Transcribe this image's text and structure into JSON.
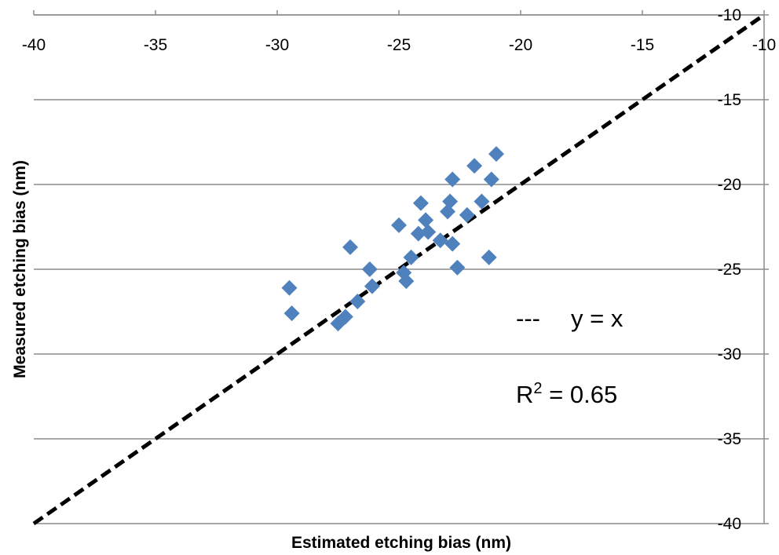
{
  "chart_data": {
    "type": "scatter",
    "xlabel": "Estimated etching bias (nm)",
    "ylabel": "Measured etching bias (nm)",
    "xlim": [
      -40,
      -10
    ],
    "ylim": [
      -40,
      -10
    ],
    "x_ticks": [
      "-40",
      "-35",
      "-30",
      "-25",
      "-20",
      "-15",
      "-10"
    ],
    "y_ticks": [
      "-10",
      "-15",
      "-20",
      "-25",
      "-30",
      "-35",
      "-40"
    ],
    "x_tick_values": [
      -40,
      -35,
      -30,
      -25,
      -20,
      -15,
      -10
    ],
    "y_tick_values": [
      -10,
      -15,
      -20,
      -25,
      -30,
      -35,
      -40
    ],
    "x_axis_position": "top",
    "y_axis_position": "right",
    "grid": "horizontal",
    "marker": "diamond",
    "marker_color": "#4F81BD",
    "reference_line": {
      "label": "y = x",
      "legend_symbol": "---",
      "style": "dashed",
      "color": "#000000"
    },
    "annotation": {
      "r_label": "R",
      "r_superscript": "2",
      "r_value_text": " = 0.65"
    },
    "series": [
      {
        "points": [
          {
            "x": -29.5,
            "y": -26.1
          },
          {
            "x": -29.4,
            "y": -27.6
          },
          {
            "x": -27.5,
            "y": -28.2
          },
          {
            "x": -27.2,
            "y": -27.8
          },
          {
            "x": -27.0,
            "y": -23.7
          },
          {
            "x": -26.7,
            "y": -26.9
          },
          {
            "x": -26.2,
            "y": -25.0
          },
          {
            "x": -26.1,
            "y": -26.0
          },
          {
            "x": -25.0,
            "y": -22.4
          },
          {
            "x": -24.8,
            "y": -25.2
          },
          {
            "x": -24.7,
            "y": -25.7
          },
          {
            "x": -24.5,
            "y": -24.3
          },
          {
            "x": -24.2,
            "y": -22.9
          },
          {
            "x": -24.1,
            "y": -21.1
          },
          {
            "x": -23.9,
            "y": -22.1
          },
          {
            "x": -23.8,
            "y": -22.8
          },
          {
            "x": -23.3,
            "y": -23.3
          },
          {
            "x": -23.0,
            "y": -21.6
          },
          {
            "x": -22.9,
            "y": -21.0
          },
          {
            "x": -22.8,
            "y": -19.7
          },
          {
            "x": -22.8,
            "y": -23.5
          },
          {
            "x": -22.6,
            "y": -24.9
          },
          {
            "x": -22.2,
            "y": -21.8
          },
          {
            "x": -21.9,
            "y": -18.9
          },
          {
            "x": -21.6,
            "y": -21.0
          },
          {
            "x": -21.3,
            "y": -24.3
          },
          {
            "x": -21.2,
            "y": -19.7
          },
          {
            "x": -21.0,
            "y": -18.2
          }
        ]
      }
    ]
  }
}
